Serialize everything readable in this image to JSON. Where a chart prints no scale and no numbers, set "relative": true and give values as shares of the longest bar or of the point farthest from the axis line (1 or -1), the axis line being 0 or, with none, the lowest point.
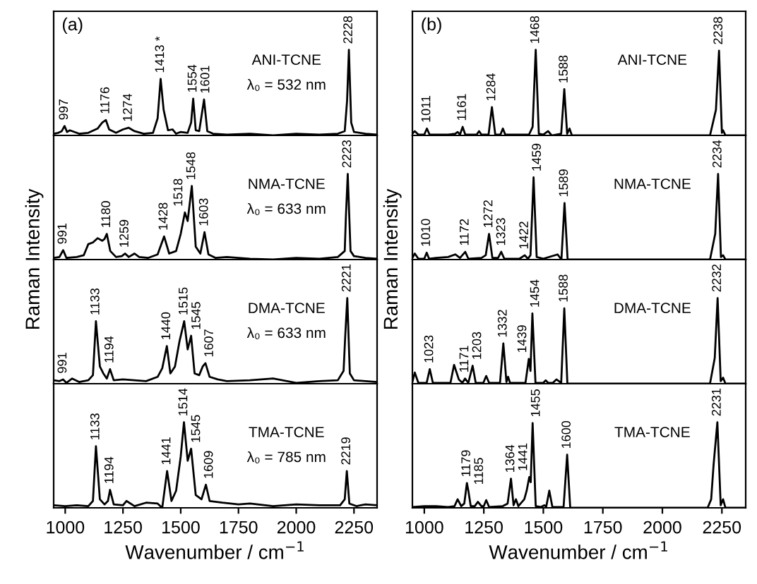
{
  "chart_data": [
    {
      "type": "line",
      "title": "(a)",
      "relative": true,
      "color": "#000000",
      "xlim": [
        950,
        2350
      ],
      "xticks": [
        1000,
        1250,
        1500,
        1750,
        2000,
        2250
      ],
      "tick_labels": false,
      "x": [
        950,
        970,
        985,
        997,
        1008,
        1020,
        1060,
        1100,
        1140,
        1160,
        1176,
        1190,
        1220,
        1250,
        1274,
        1300,
        1340,
        1380,
        1400,
        1413,
        1426,
        1445,
        1465,
        1480,
        1500,
        1530,
        1545,
        1554,
        1565,
        1580,
        1601,
        1615,
        1640,
        1700,
        1800,
        1900,
        2000,
        2100,
        2180,
        2210,
        2220,
        2228,
        2238,
        2250,
        2300,
        2350
      ],
      "values": [
        0.02,
        0.03,
        0.05,
        0.11,
        0.04,
        0.06,
        0.02,
        0.03,
        0.08,
        0.15,
        0.18,
        0.07,
        0.03,
        0.07,
        0.09,
        0.05,
        0.02,
        0.03,
        0.2,
        0.66,
        0.3,
        0.06,
        0.07,
        0.02,
        0.04,
        0.03,
        0.15,
        0.43,
        0.06,
        0.05,
        0.42,
        0.05,
        0.02,
        0.01,
        0.02,
        0.0,
        0.02,
        0.01,
        0.02,
        0.05,
        0.4,
        1.0,
        0.15,
        0.04,
        0.02,
        0.01
      ],
      "annotations": [
        "ANI-TCNE",
        "λ₀ = 532 nm",
        {
          "text": "997",
          "x": 997,
          "y": 0.11
        },
        {
          "text": "1176",
          "x": 1176,
          "y": 0.18
        },
        {
          "text": "1274",
          "x": 1274,
          "y": 0.09
        },
        {
          "text": "1413 *",
          "x": 1413,
          "y": 0.66
        },
        {
          "text": "1554",
          "x": 1554,
          "y": 0.43
        },
        {
          "text": "1601",
          "x": 1601,
          "y": 0.42
        },
        {
          "text": "2228",
          "x": 2228,
          "y": 1.0
        }
      ]
    },
    {
      "type": "line",
      "relative": true,
      "color": "#000000",
      "xlim": [
        950,
        2350
      ],
      "xticks": [
        1000,
        1250,
        1500,
        1750,
        2000,
        2250
      ],
      "tick_labels": false,
      "x": [
        950,
        975,
        991,
        1005,
        1050,
        1080,
        1100,
        1120,
        1140,
        1160,
        1170,
        1180,
        1195,
        1220,
        1245,
        1259,
        1275,
        1300,
        1320,
        1360,
        1400,
        1428,
        1450,
        1480,
        1500,
        1518,
        1530,
        1548,
        1565,
        1585,
        1603,
        1620,
        1650,
        1700,
        1800,
        1900,
        2000,
        2100,
        2180,
        2210,
        2215,
        2223,
        2235,
        2250,
        2300,
        2350
      ],
      "values": [
        0.02,
        0.03,
        0.11,
        0.02,
        0.03,
        0.05,
        0.18,
        0.2,
        0.25,
        0.22,
        0.24,
        0.3,
        0.1,
        0.03,
        0.04,
        0.07,
        0.03,
        0.07,
        0.03,
        0.02,
        0.06,
        0.27,
        0.07,
        0.1,
        0.3,
        0.55,
        0.45,
        0.86,
        0.15,
        0.07,
        0.32,
        0.06,
        0.02,
        0.03,
        0.01,
        0.0,
        0.02,
        0.01,
        0.03,
        0.1,
        0.5,
        1.0,
        0.1,
        0.04,
        0.02,
        0.01
      ],
      "annotations": [
        "NMA-TCNE",
        "λ₀ = 633 nm",
        {
          "text": "991",
          "x": 991,
          "y": 0.11
        },
        {
          "text": "1180",
          "x": 1180,
          "y": 0.3
        },
        {
          "text": "1259",
          "x": 1259,
          "y": 0.07
        },
        {
          "text": "1428",
          "x": 1428,
          "y": 0.27
        },
        {
          "text": "1518",
          "x": 1518,
          "y": 0.55
        },
        {
          "text": "1548",
          "x": 1548,
          "y": 0.86
        },
        {
          "text": "1603",
          "x": 1603,
          "y": 0.32
        },
        {
          "text": "2223",
          "x": 2223,
          "y": 1.0
        }
      ]
    },
    {
      "type": "line",
      "relative": true,
      "color": "#000000",
      "xlim": [
        950,
        2350
      ],
      "xticks": [
        1000,
        1250,
        1500,
        1750,
        2000,
        2250
      ],
      "tick_labels": false,
      "x": [
        950,
        975,
        991,
        1005,
        1030,
        1060,
        1100,
        1120,
        1133,
        1150,
        1165,
        1180,
        1194,
        1210,
        1250,
        1300,
        1350,
        1400,
        1420,
        1440,
        1455,
        1475,
        1495,
        1515,
        1530,
        1545,
        1560,
        1580,
        1595,
        1607,
        1625,
        1660,
        1700,
        1800,
        1900,
        2000,
        2100,
        2180,
        2205,
        2212,
        2221,
        2232,
        2250,
        2300,
        2350
      ],
      "values": [
        0.04,
        0.03,
        0.05,
        0.01,
        0.06,
        0.02,
        0.04,
        0.1,
        0.73,
        0.2,
        0.12,
        0.06,
        0.17,
        0.04,
        0.05,
        0.04,
        0.03,
        0.08,
        0.18,
        0.44,
        0.12,
        0.2,
        0.5,
        0.73,
        0.4,
        0.56,
        0.12,
        0.1,
        0.2,
        0.24,
        0.08,
        0.05,
        0.03,
        0.04,
        0.06,
        0.01,
        0.03,
        0.04,
        0.15,
        0.55,
        1.0,
        0.12,
        0.04,
        0.03,
        0.02
      ],
      "annotations": [
        "DMA-TCNE",
        "λ₀ = 633 nm",
        {
          "text": "991",
          "x": 991,
          "y": 0.05
        },
        {
          "text": "1133",
          "x": 1133,
          "y": 0.73
        },
        {
          "text": "1194",
          "x": 1194,
          "y": 0.17
        },
        {
          "text": "1440",
          "x": 1440,
          "y": 0.44
        },
        {
          "text": "1515",
          "x": 1515,
          "y": 0.73
        },
        {
          "text": "1545",
          "x": 1545,
          "y": 0.56
        },
        {
          "text": "1607",
          "x": 1607,
          "y": 0.24
        },
        {
          "text": "2221",
          "x": 2221,
          "y": 1.0
        }
      ]
    },
    {
      "type": "line",
      "relative": true,
      "color": "#000000",
      "xlim": [
        950,
        2350
      ],
      "xticks": [
        1000,
        1250,
        1500,
        1750,
        2000,
        2250
      ],
      "tick_labels": "x",
      "xlabel": "Wavenumber / cm$^{−1}$",
      "ylabel": "Raman Intensity",
      "x": [
        950,
        1000,
        1050,
        1100,
        1120,
        1133,
        1150,
        1170,
        1185,
        1194,
        1210,
        1250,
        1265,
        1300,
        1350,
        1400,
        1420,
        1441,
        1460,
        1480,
        1500,
        1514,
        1530,
        1545,
        1565,
        1590,
        1609,
        1625,
        1680,
        1750,
        1800,
        1900,
        2000,
        2100,
        2190,
        2210,
        2219,
        2230,
        2260,
        2300,
        2350
      ],
      "values": [
        0.03,
        0.02,
        0.03,
        0.02,
        0.08,
        0.72,
        0.1,
        0.04,
        0.08,
        0.21,
        0.04,
        0.03,
        0.08,
        0.02,
        0.06,
        0.05,
        0.0,
        0.43,
        0.08,
        0.2,
        0.6,
        1.0,
        0.55,
        0.69,
        0.15,
        0.1,
        0.27,
        0.08,
        0.06,
        0.04,
        0.05,
        0.02,
        0.04,
        0.03,
        0.03,
        0.1,
        0.43,
        0.05,
        0.02,
        0.04,
        0.03
      ],
      "annotations": [
        "TMA-TCNE",
        "λ₀ = 785 nm",
        {
          "text": "1133",
          "x": 1133,
          "y": 0.72
        },
        {
          "text": "1194",
          "x": 1194,
          "y": 0.21
        },
        {
          "text": "1441",
          "x": 1441,
          "y": 0.43
        },
        {
          "text": "1514",
          "x": 1514,
          "y": 1.0
        },
        {
          "text": "1545",
          "x": 1545,
          "y": 0.69
        },
        {
          "text": "1609",
          "x": 1609,
          "y": 0.27
        },
        {
          "text": "2219",
          "x": 2219,
          "y": 0.43
        }
      ]
    },
    {
      "type": "line",
      "title": "(b)",
      "relative": true,
      "color": "#000000",
      "xlim": [
        950,
        2350
      ],
      "xticks": [
        1000,
        1250,
        1500,
        1750,
        2000,
        2250
      ],
      "tick_labels": false,
      "x": [
        950,
        960,
        975,
        1000,
        1011,
        1022,
        1100,
        1130,
        1140,
        1150,
        1161,
        1172,
        1220,
        1230,
        1240,
        1270,
        1284,
        1298,
        1320,
        1330,
        1340,
        1440,
        1455,
        1468,
        1481,
        1500,
        1520,
        1535,
        1575,
        1588,
        1600,
        1610,
        1620,
        1700,
        2000,
        2200,
        2225,
        2238,
        2250,
        2255,
        2265,
        2350
      ],
      "values": [
        0.02,
        0.05,
        0.01,
        0.01,
        0.08,
        0.01,
        0.01,
        0.02,
        0.04,
        0.01,
        0.1,
        0.01,
        0.01,
        0.05,
        0.01,
        0.01,
        0.33,
        0.01,
        0.01,
        0.08,
        0.01,
        0.01,
        0.1,
        1.0,
        0.02,
        0.01,
        0.05,
        0.0,
        0.02,
        0.54,
        0.02,
        0.08,
        0.0,
        0.0,
        0.0,
        0.0,
        0.3,
        0.99,
        0.03,
        0.06,
        0.0,
        0.0
      ],
      "annotations": [
        "ANI-TCNE",
        {
          "text": "1011",
          "x": 1011,
          "y": 0.08
        },
        {
          "text": "1161",
          "x": 1161,
          "y": 0.1
        },
        {
          "text": "1284",
          "x": 1284,
          "y": 0.33
        },
        {
          "text": "1468",
          "x": 1468,
          "y": 1.0
        },
        {
          "text": "1588",
          "x": 1588,
          "y": 0.54
        },
        {
          "text": "2238",
          "x": 2238,
          "y": 0.99
        }
      ]
    },
    {
      "type": "line",
      "relative": true,
      "color": "#000000",
      "xlim": [
        950,
        2350
      ],
      "xticks": [
        1000,
        1250,
        1500,
        1750,
        2000,
        2250
      ],
      "tick_labels": false,
      "x": [
        950,
        960,
        975,
        1000,
        1010,
        1020,
        1050,
        1100,
        1130,
        1150,
        1172,
        1185,
        1240,
        1258,
        1272,
        1286,
        1310,
        1323,
        1336,
        1400,
        1422,
        1435,
        1446,
        1459,
        1472,
        1500,
        1560,
        1576,
        1589,
        1602,
        1700,
        2000,
        2200,
        2222,
        2234,
        2246,
        2255,
        2265,
        2350
      ],
      "values": [
        0.02,
        0.07,
        0.01,
        0.01,
        0.08,
        0.01,
        0.02,
        0.03,
        0.06,
        0.02,
        0.09,
        0.01,
        0.02,
        0.05,
        0.3,
        0.02,
        0.02,
        0.09,
        0.01,
        0.01,
        0.05,
        0.01,
        0.05,
        0.96,
        0.03,
        0.01,
        0.06,
        0.0,
        0.66,
        0.0,
        0.0,
        0.0,
        0.0,
        0.3,
        1.0,
        0.03,
        0.05,
        0.0,
        0.0
      ],
      "annotations": [
        "NMA-TCNE",
        {
          "text": "1010",
          "x": 1010,
          "y": 0.08
        },
        {
          "text": "1172",
          "x": 1172,
          "y": 0.09
        },
        {
          "text": "1272",
          "x": 1272,
          "y": 0.3
        },
        {
          "text": "1323",
          "x": 1323,
          "y": 0.09
        },
        {
          "text": "1422",
          "x": 1422,
          "y": 0.05
        },
        {
          "text": "1459",
          "x": 1459,
          "y": 0.96
        },
        {
          "text": "1589",
          "x": 1589,
          "y": 0.66
        },
        {
          "text": "2234",
          "x": 2234,
          "y": 1.0
        }
      ]
    },
    {
      "type": "line",
      "relative": true,
      "color": "#000000",
      "xlim": [
        950,
        2350
      ],
      "xticks": [
        1000,
        1250,
        1500,
        1750,
        2000,
        2250
      ],
      "tick_labels": false,
      "x": [
        950,
        960,
        975,
        1010,
        1023,
        1036,
        1110,
        1125,
        1145,
        1160,
        1171,
        1185,
        1203,
        1216,
        1248,
        1260,
        1272,
        1318,
        1332,
        1345,
        1352,
        1360,
        1425,
        1439,
        1446,
        1454,
        1467,
        1500,
        1510,
        1520,
        1540,
        1555,
        1575,
        1588,
        1601,
        1700,
        2000,
        2200,
        2220,
        2232,
        2245,
        2255,
        2265,
        2350
      ],
      "values": [
        0.02,
        0.13,
        0.01,
        0.01,
        0.17,
        0.01,
        0.01,
        0.22,
        0.05,
        0.01,
        0.06,
        0.01,
        0.21,
        0.01,
        0.01,
        0.09,
        0.01,
        0.01,
        0.47,
        0.02,
        0.08,
        0.01,
        0.01,
        0.29,
        0.15,
        0.82,
        0.01,
        0.01,
        0.04,
        0.01,
        0.01,
        0.05,
        0.01,
        0.88,
        0.0,
        0.0,
        0.0,
        0.0,
        0.3,
        1.0,
        0.03,
        0.07,
        0.0,
        0.0
      ],
      "annotations": [
        "DMA-TCNE",
        {
          "text": "1023",
          "x": 1023,
          "y": 0.17
        },
        {
          "text": "1171",
          "x": 1171,
          "y": 0.06
        },
        {
          "text": "1203",
          "x": 1203,
          "y": 0.21
        },
        {
          "text": "1332",
          "x": 1332,
          "y": 0.47
        },
        {
          "text": "1439",
          "x": 1439,
          "y": 0.29
        },
        {
          "text": "1454",
          "x": 1454,
          "y": 0.82
        },
        {
          "text": "1588",
          "x": 1588,
          "y": 0.88
        },
        {
          "text": "2232",
          "x": 2232,
          "y": 1.0
        }
      ]
    },
    {
      "type": "line",
      "relative": true,
      "color": "#000000",
      "xlim": [
        950,
        2350
      ],
      "xticks": [
        1000,
        1250,
        1500,
        1750,
        2000,
        2250
      ],
      "tick_labels": "x",
      "xlabel": "Wavenumber / cm$^{−1}$",
      "ylabel": "Raman Intensity",
      "x": [
        950,
        1000,
        1050,
        1100,
        1127,
        1140,
        1155,
        1168,
        1179,
        1185,
        1195,
        1212,
        1225,
        1240,
        1250,
        1260,
        1272,
        1330,
        1350,
        1364,
        1375,
        1385,
        1395,
        1420,
        1430,
        1441,
        1447,
        1455,
        1468,
        1490,
        1505,
        1512,
        1525,
        1538,
        1585,
        1600,
        1613,
        1700,
        2000,
        2190,
        2205,
        2215,
        2231,
        2245,
        2255,
        2265,
        2350
      ],
      "values": [
        0.01,
        0.02,
        0.02,
        0.01,
        0.02,
        0.1,
        0.02,
        0.05,
        0.29,
        0.2,
        0.02,
        0.02,
        0.07,
        0.02,
        0.02,
        0.09,
        0.01,
        0.02,
        0.05,
        0.34,
        0.03,
        0.1,
        0.02,
        0.1,
        0.2,
        0.36,
        0.3,
        0.99,
        0.02,
        0.01,
        0.03,
        0.01,
        0.2,
        0.01,
        0.01,
        0.62,
        0.0,
        0.0,
        0.0,
        0.0,
        0.1,
        0.5,
        1.0,
        0.03,
        0.1,
        0.0,
        0.0
      ],
      "annotations": [
        "TMA-TCNE",
        {
          "text": "1179",
          "x": 1179,
          "y": 0.29
        },
        {
          "text": "1185",
          "x": 1185,
          "y": 0.2
        },
        {
          "text": "1364",
          "x": 1364,
          "y": 0.34
        },
        {
          "text": "1441",
          "x": 1441,
          "y": 0.36
        },
        {
          "text": "1455",
          "x": 1455,
          "y": 0.99
        },
        {
          "text": "1600",
          "x": 1600,
          "y": 0.62
        },
        {
          "text": "2231",
          "x": 2231,
          "y": 1.0
        }
      ]
    }
  ]
}
